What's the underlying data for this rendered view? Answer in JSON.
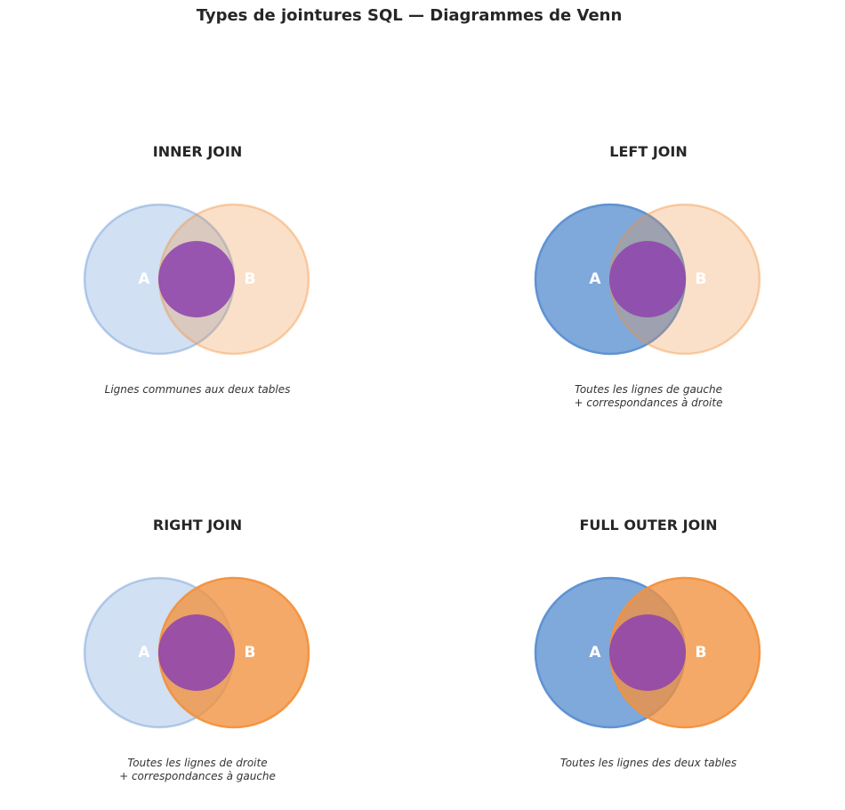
{
  "title": "Types de jointures SQL — Diagrammes de Venn",
  "colors": {
    "circle_a": "#5b8fd1",
    "circle_b": "#f2913d",
    "intersection": "#8e44ad"
  },
  "panels": [
    {
      "title": "INNER JOIN",
      "label_a": "A",
      "label_b": "B",
      "a_highlighted": false,
      "b_highlighted": false,
      "caption_lines": [
        "Lignes communes aux deux tables"
      ]
    },
    {
      "title": "LEFT JOIN",
      "label_a": "A",
      "label_b": "B",
      "a_highlighted": true,
      "b_highlighted": false,
      "caption_lines": [
        "Toutes les lignes de gauche",
        "+ correspondances à droite"
      ]
    },
    {
      "title": "RIGHT JOIN",
      "label_a": "A",
      "label_b": "B",
      "a_highlighted": false,
      "b_highlighted": true,
      "caption_lines": [
        "Toutes les lignes de droite",
        "+ correspondances à gauche"
      ]
    },
    {
      "title": "FULL OUTER JOIN",
      "label_a": "A",
      "label_b": "B",
      "a_highlighted": true,
      "b_highlighted": true,
      "caption_lines": [
        "Toutes les lignes des deux tables"
      ]
    }
  ]
}
